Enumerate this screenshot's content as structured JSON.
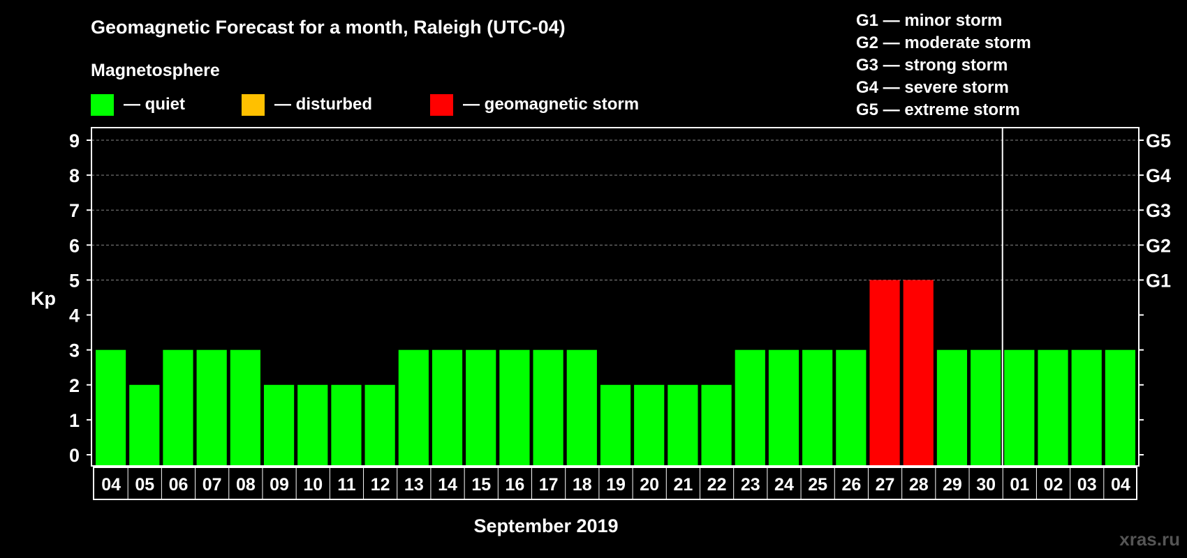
{
  "chart_data": {
    "type": "bar",
    "title": "Geomagnetic Forecast for a month, Raleigh (UTC-04)",
    "legend_title": "Magnetosphere",
    "legend": [
      {
        "label": "— quiet",
        "color": "#00ff00"
      },
      {
        "label": "— disturbed",
        "color": "#ffc000"
      },
      {
        "label": "— geomagnetic storm",
        "color": "#ff0000"
      }
    ],
    "storm_scale": [
      "G1 — minor storm",
      "G2 — moderate storm",
      "G3 — strong storm",
      "G4 — severe storm",
      "G5 — extreme storm"
    ],
    "ylabel": "Kp",
    "xlabel": "September 2019",
    "ylim": [
      0,
      9
    ],
    "yticks": [
      "0",
      "1",
      "2",
      "3",
      "4",
      "5",
      "6",
      "7",
      "8",
      "9"
    ],
    "right_ticks": [
      {
        "value": 5,
        "label": "G1"
      },
      {
        "value": 6,
        "label": "G2"
      },
      {
        "value": 7,
        "label": "G3"
      },
      {
        "value": 8,
        "label": "G4"
      },
      {
        "value": 9,
        "label": "G5"
      }
    ],
    "categories": [
      "04",
      "05",
      "06",
      "07",
      "08",
      "09",
      "10",
      "11",
      "12",
      "13",
      "14",
      "15",
      "16",
      "17",
      "18",
      "19",
      "20",
      "21",
      "22",
      "23",
      "24",
      "25",
      "26",
      "27",
      "28",
      "29",
      "30",
      "01",
      "02",
      "03",
      "04"
    ],
    "values": [
      3,
      2,
      3,
      3,
      3,
      2,
      2,
      2,
      2,
      3,
      3,
      3,
      3,
      3,
      3,
      2,
      2,
      2,
      2,
      3,
      3,
      3,
      3,
      5,
      5,
      3,
      3,
      3,
      3,
      3,
      3
    ],
    "colors": {
      "quiet": "#00ff00",
      "storm": "#ff0000"
    },
    "month_boundary_after_index": 26
  },
  "watermark": "xras.ru"
}
